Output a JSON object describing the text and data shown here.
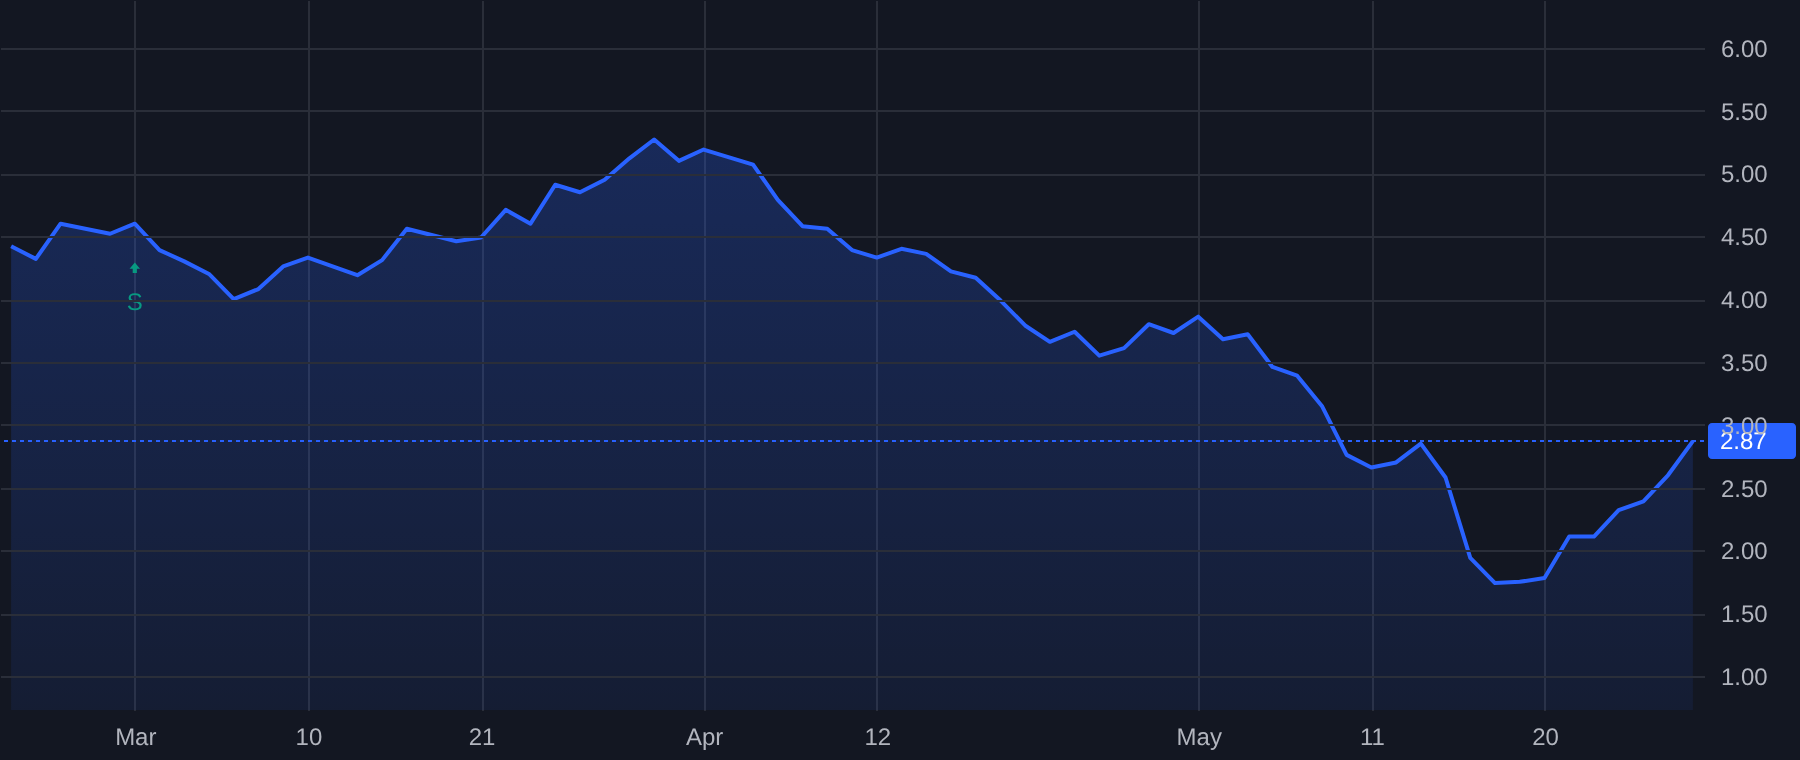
{
  "chart_data": {
    "type": "area",
    "categories": [
      null,
      null,
      null,
      null,
      null,
      "Mar",
      null,
      null,
      null,
      null,
      null,
      null,
      "10",
      null,
      null,
      null,
      null,
      null,
      null,
      "21",
      null,
      null,
      null,
      null,
      null,
      null,
      null,
      null,
      "Apr",
      null,
      null,
      null,
      null,
      null,
      null,
      "12",
      null,
      null,
      null,
      null,
      null,
      null,
      null,
      null,
      null,
      null,
      null,
      null,
      "May",
      null,
      null,
      null,
      null,
      null,
      null,
      "11",
      null,
      null,
      null,
      null,
      null,
      null,
      "20",
      null,
      null,
      null,
      null,
      null,
      null
    ],
    "series": [
      {
        "color": "#2962ff",
        "values": [
          4.42,
          4.32,
          4.6,
          4.56,
          4.52,
          4.6,
          4.39,
          4.3,
          4.2,
          4.0,
          4.08,
          4.26,
          4.33,
          4.26,
          4.19,
          4.31,
          4.56,
          4.51,
          4.46,
          4.49,
          4.71,
          4.6,
          4.91,
          4.85,
          4.95,
          5.12,
          5.27,
          5.1,
          5.19,
          5.13,
          5.07,
          4.79,
          4.58,
          4.56,
          4.39,
          4.33,
          4.4,
          4.36,
          4.22,
          4.17,
          3.99,
          3.79,
          3.66,
          3.74,
          3.55,
          3.61,
          3.8,
          3.73,
          3.86,
          3.68,
          3.72,
          3.46,
          3.39,
          3.15,
          2.76,
          2.66,
          2.7,
          2.85,
          2.58,
          1.94,
          1.74,
          1.75,
          1.78,
          2.11,
          2.11,
          2.32,
          2.39,
          2.6,
          2.87
        ]
      }
    ],
    "ylim": [
      0.73,
      6.38
    ],
    "yticks": [
      {
        "value": 1,
        "label": "1.00"
      },
      {
        "value": 1.5,
        "label": "1.50"
      },
      {
        "value": 2,
        "label": "2.00"
      },
      {
        "value": 2.5,
        "label": "2.50"
      },
      {
        "value": 3,
        "label": "3.00"
      },
      {
        "value": 3.5,
        "label": "3.50"
      },
      {
        "value": 4,
        "label": "4.00"
      },
      {
        "value": 4.5,
        "label": "4.50"
      },
      {
        "value": 5,
        "label": "5.00"
      },
      {
        "value": 5.5,
        "label": "5.50"
      },
      {
        "value": 6,
        "label": "6.00"
      }
    ],
    "grid": true,
    "ref_lines": [
      {
        "axis": "y",
        "value": 2.87,
        "label": "2.87",
        "color": "#2962ff",
        "line_style": "dotted"
      }
    ],
    "annotations": [
      {
        "text": "S",
        "x": "Mar",
        "y": 4.25
      }
    ]
  }
}
